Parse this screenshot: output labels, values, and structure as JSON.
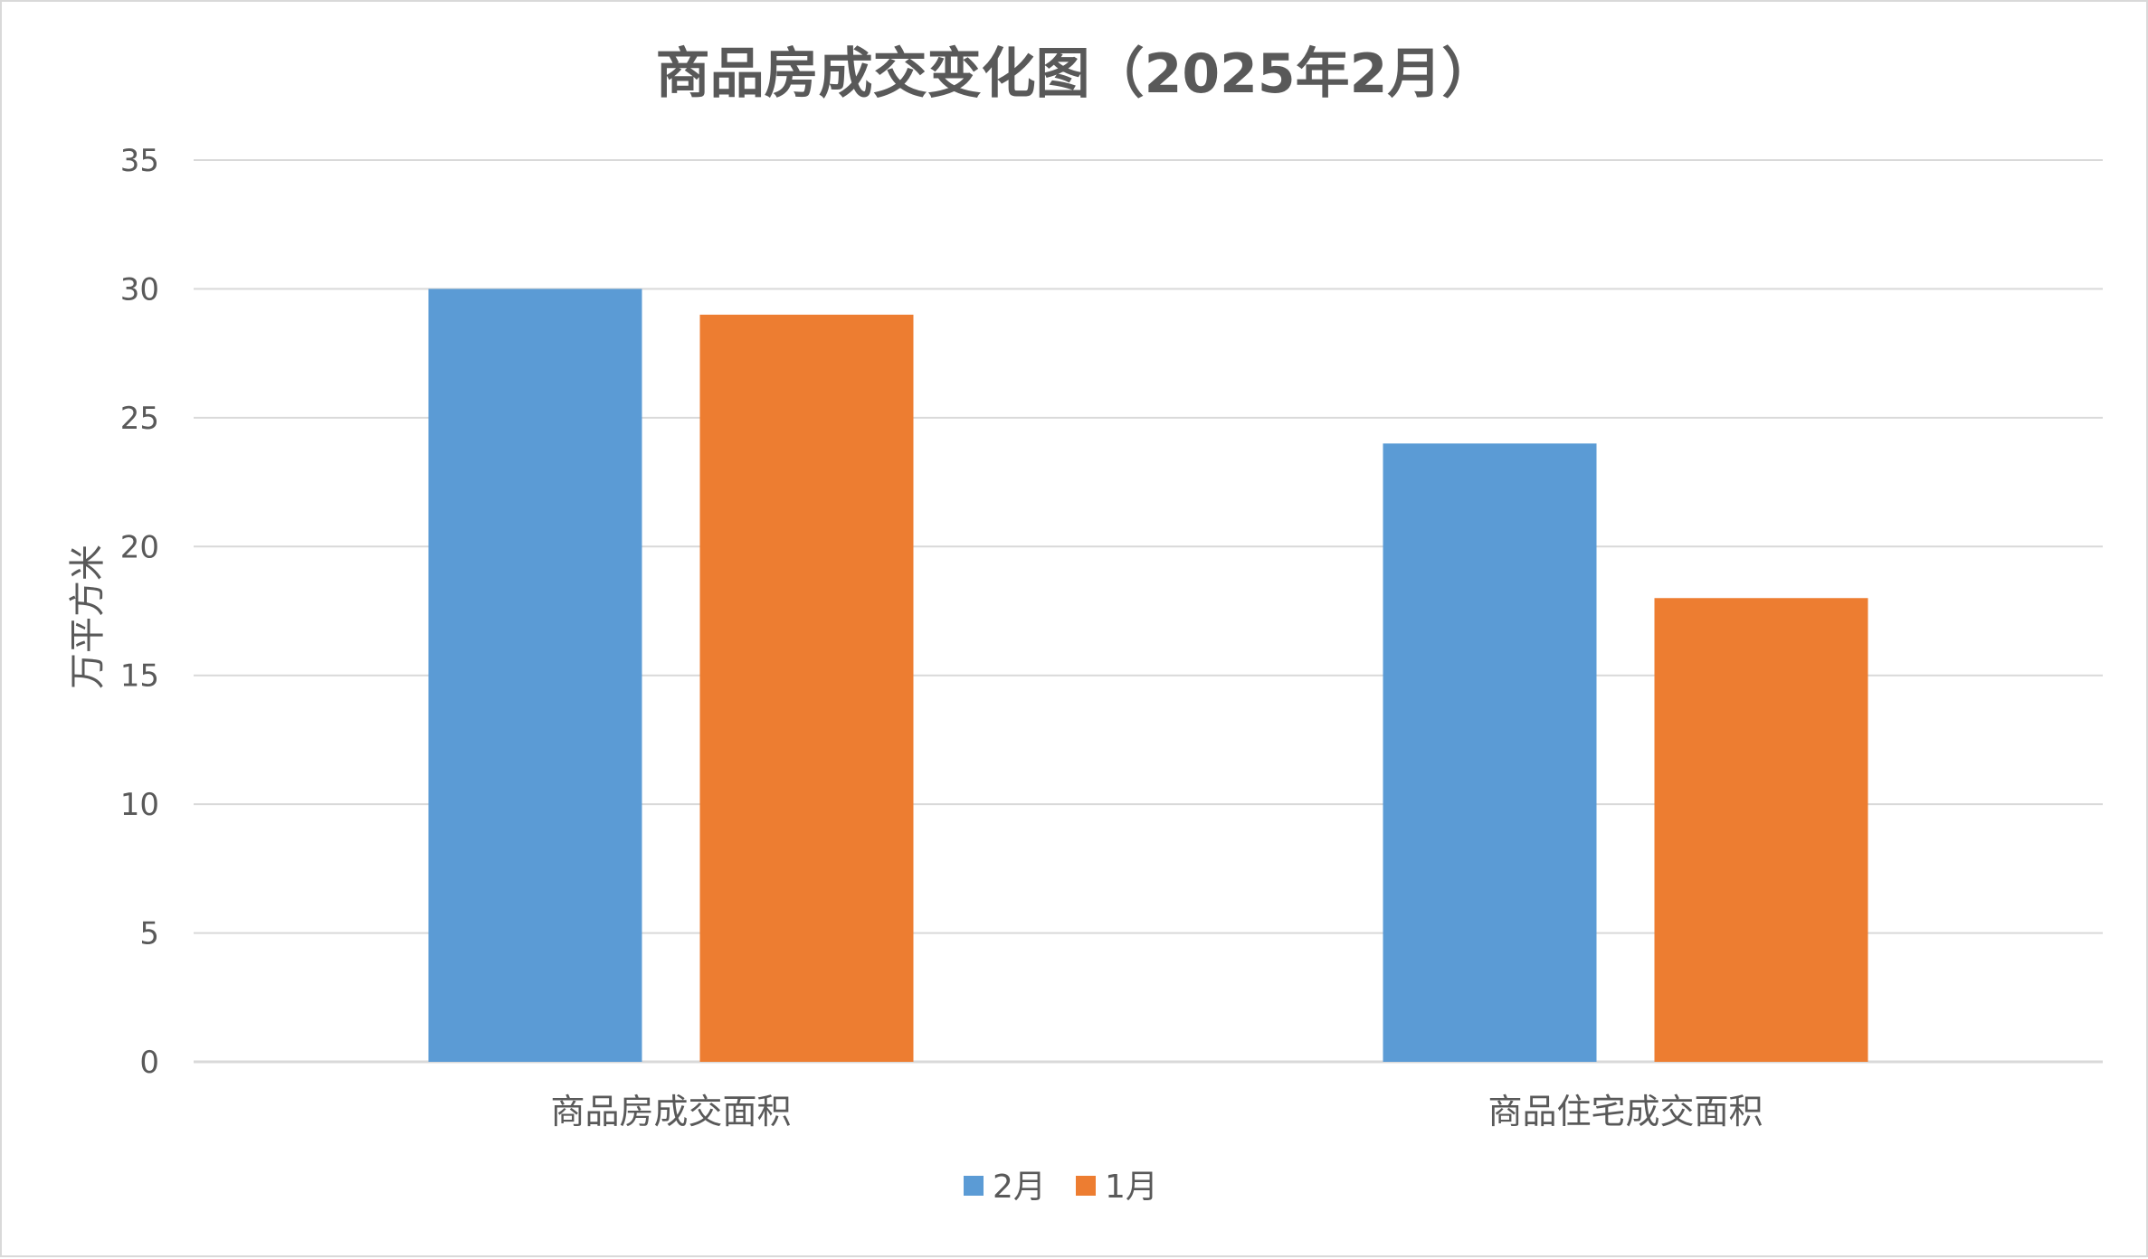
{
  "chart_data": {
    "type": "bar",
    "title": "商品房成交变化图（2025年2月）",
    "xlabel": "",
    "ylabel": "万平方米",
    "categories": [
      "商品房成交面积",
      "商品住宅成交面积"
    ],
    "series": [
      {
        "name": "2月",
        "values": [
          30,
          24
        ],
        "color": "#5b9bd5"
      },
      {
        "name": "1月",
        "values": [
          29,
          18
        ],
        "color": "#ed7d31"
      }
    ],
    "ylim": [
      0,
      35
    ],
    "yticks": [
      "0",
      "5",
      "10",
      "15",
      "20",
      "25",
      "30",
      "35"
    ],
    "grid": true,
    "legend_position": "bottom"
  }
}
